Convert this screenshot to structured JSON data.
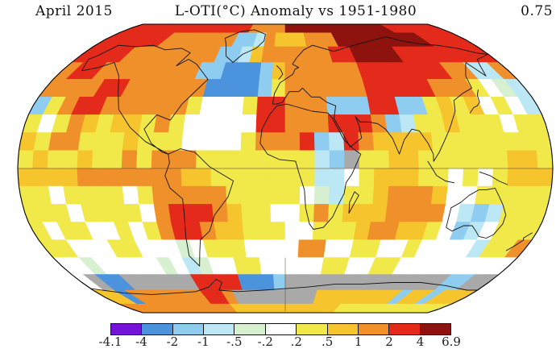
{
  "header": {
    "date_label": "April 2015",
    "title": "L-OTI(°C) Anomaly vs 1951-1980",
    "mean_value": "0.75"
  },
  "chart_data": {
    "type": "heatmap",
    "title": "L-OTI(°C) Anomaly vs 1951-1980",
    "period": "April 2015",
    "global_mean_anomaly_c": 0.75,
    "units": "°C",
    "baseline": "1951-1980",
    "projection": "robinson",
    "colorbar": {
      "tick_labels": [
        "-4.1",
        "-4",
        "-2",
        "-1",
        "-.5",
        "-.2",
        ".2",
        ".5",
        "1",
        "2",
        "4",
        "6.9"
      ],
      "colors": [
        "#7412d9",
        "#4b93dc",
        "#8ecdf0",
        "#bce7f5",
        "#d7f0d0",
        "#ffffff",
        "#f1e84a",
        "#f6c42c",
        "#f0902a",
        "#e42a1b",
        "#8e120d"
      ],
      "nodata_color": "#a9a9a9"
    },
    "palette": {
      "P": "#7412d9",
      "B": "#4b93dc",
      "b": "#8ecdf0",
      "c": "#bce7f5",
      "g": "#d7f0d0",
      "w": "#ffffff",
      "y": "#f1e84a",
      "Y": "#f6c42c",
      "o": "#f0902a",
      "r": "#e42a1b",
      "R": "#8e120d",
      "G": "#a9a9a9"
    },
    "grid": {
      "lon_start": -180,
      "lon_step": 10,
      "lat_start": 90,
      "lat_step": -10,
      "legend": "each char = one 10x10 degree cell, letter keys in palette",
      "rows": [
        "rrrrrrrrrrrrrrooooRRRRRRRRRRRRrrrrrr",
        "rrrrrrooooooobbcoYYYoooRRRRRRRRRrrrr",
        "rrrroooooooobbcYoooooorrRRRRrrrrrrrr",
        "orroooooooobbBBBbYoooooorrrrrrroocco",
        "oooorrooooooBBBBbyoooooorrrrroooywgc",
        "byorrooooooywwwyrrooobbbrrbbyYyYwywc",
        "ywyoYyYYyoywwwwwrrooorrrobcyyYyyywyy",
        "YyooyyyYyyywwwwyooorbcroYYYYyyyyyyyy",
        "yYyyYyyoyoooyyyyyyyycbGyyYYyyyyyyYYy",
        "YYYYoooooooYYyyyyyyyccwyYYYyywywyYYY",
        "yywyyyywyoooooyyyyywgcyyYoooYwwyyyyy",
        "yyywyyyyworrroYyywwyoyYYYoooowcbcyyy",
        "ywyywwywyorroYYyyywwyyyYooYYywbcwyyy",
        "yywwwyywwwgwyyywwwwoowwyywwywwwwcyyo",
        "wwgwwwwwgwcgwwyywwwwwyywwyywwwwwwwww",
        "wGBBGGGGGGrrrrBBBbGGGGGGGGGGGGGGbbGG",
        "YYBooooooorroGGGGGGGGYYYYYYYYbYYbYYY",
        "ooooooooooooYYYYYYYYYYYYyyyyyyyyyyyy"
      ]
    }
  }
}
